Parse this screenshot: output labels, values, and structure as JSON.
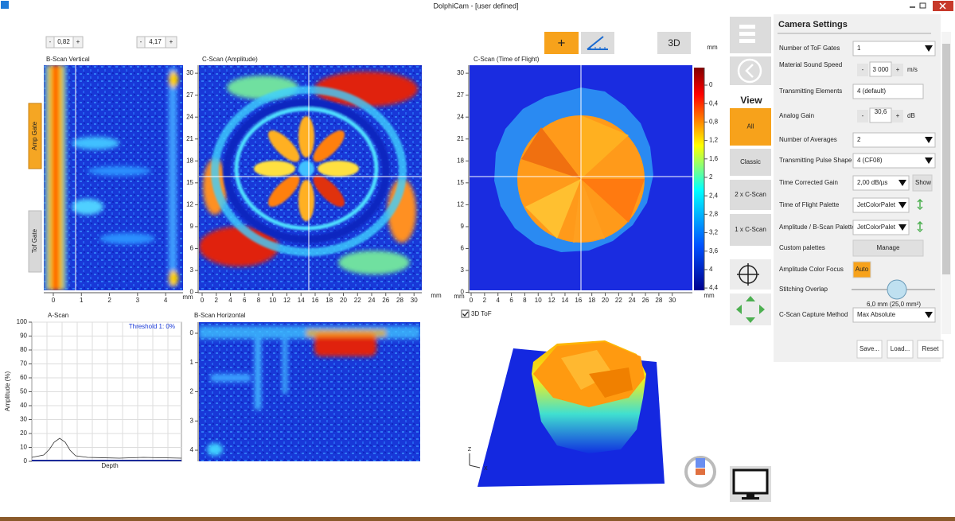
{
  "title": "DolphiCam - [user defined]",
  "gate_inputs": [
    {
      "dec": "-",
      "value": "0,82",
      "inc": "+"
    },
    {
      "dec": "-",
      "value": "4,17",
      "inc": "+"
    }
  ],
  "side_tabs": [
    "Amp Gate",
    "Tof Gate"
  ],
  "toolbar": {
    "add": "+",
    "view_3d": "3D"
  },
  "bscan_vertical": {
    "title": "B-Scan Vertical",
    "xlim": [
      -0.34,
      4.62
    ],
    "xticks": [
      0,
      1,
      2,
      3,
      4
    ],
    "x_unit": "mm"
  },
  "cscan_amplitude": {
    "title": "C-Scan (Amplitude)",
    "xlim": [
      -0.45,
      31.1
    ],
    "xticks": [
      0,
      2,
      4,
      6,
      8,
      10,
      12,
      14,
      16,
      18,
      20,
      22,
      24,
      26,
      28,
      30
    ],
    "ylim": [
      0,
      31.1
    ],
    "yticks": [
      0,
      3,
      6,
      9,
      12,
      15,
      18,
      21,
      24,
      27,
      30
    ],
    "x_unit": "mm"
  },
  "cscan_tof": {
    "title": "C-Scan (Time of Flight)",
    "xlim": [
      -0.24,
      33
    ],
    "xticks": [
      0,
      2,
      4,
      6,
      8,
      10,
      12,
      14,
      16,
      18,
      20,
      22,
      24,
      26,
      28,
      30
    ],
    "ylim": [
      0,
      31.1
    ],
    "yticks": [
      0,
      3,
      6,
      9,
      12,
      15,
      18,
      21,
      24,
      27,
      30
    ],
    "y_unit": "mm"
  },
  "colorbar": {
    "ylim": [
      -0.38,
      4.45
    ],
    "yticks": [
      0,
      {
        "value": 0.4,
        "label": "0,4"
      },
      {
        "value": 0.8,
        "label": "0,8"
      },
      {
        "value": 1.2,
        "label": "1,2"
      },
      {
        "value": 1.6,
        "label": "1,6"
      },
      2,
      {
        "value": 2.4,
        "label": "2,4"
      },
      {
        "value": 2.8,
        "label": "2,8"
      },
      {
        "value": 3.2,
        "label": "3,2"
      },
      {
        "value": 3.6,
        "label": "3,6"
      },
      4,
      {
        "value": 4.4,
        "label": "4,4"
      }
    ],
    "unit_top": "mm",
    "unit_bottom": "mm"
  },
  "ascan": {
    "title": "A-Scan",
    "ylabel": "Amplitude (%)",
    "xlabel": "Depth",
    "threshold": "Threshold 1: 0%",
    "ylim": [
      0,
      100
    ],
    "yticks": [
      0,
      10,
      20,
      30,
      40,
      50,
      60,
      70,
      80,
      90,
      100
    ],
    "grid": true
  },
  "bscan_horizontal": {
    "title": "B-Scan Horizontal",
    "ylim": [
      -0.38,
      4.38
    ],
    "yticks": [
      0,
      1,
      2,
      3,
      4
    ]
  },
  "tof_3d": {
    "checkbox": "3D ToF",
    "axes": [
      "Z",
      "X"
    ]
  },
  "view": {
    "title": "View",
    "modes": [
      "All",
      "Classic",
      "2 x C-Scan",
      "1 x C-Scan"
    ]
  },
  "settings": {
    "title": "Camera Settings",
    "rows": [
      {
        "label": "Number of ToF Gates",
        "value": "1"
      },
      {
        "label": "Material Sound Speed",
        "dec": "-",
        "value": "3 000",
        "inc": "+",
        "unit": "m/s"
      },
      {
        "label": "Transmitting Elements",
        "value": "4 (default)"
      },
      {
        "label": "Analog Gain",
        "dec": "-",
        "value": "30,6",
        "inc": "+",
        "unit": "dB"
      },
      {
        "label": "Number of Averages",
        "value": "2"
      },
      {
        "label": "Transmitting Pulse Shape",
        "value": "4 (CF08)"
      },
      {
        "label": "Time Corrected Gain",
        "value": "2,00 dB/µs",
        "button": "Show"
      },
      {
        "label": "Time of Flight Palette",
        "value": "JetColorPalet"
      },
      {
        "label": "Amplitude / B-Scan Palette",
        "value": "JetColorPalet"
      },
      {
        "label": "Custom palettes",
        "button": "Manage"
      },
      {
        "label": "Amplitude Color Focus",
        "button": "Auto"
      },
      {
        "label": "Stitching Overlap",
        "value": "6,0 mm (25,0 mm²)"
      },
      {
        "label": "C-Scan Capture Method",
        "value": "Max Absolute"
      }
    ],
    "buttons": [
      "Save...",
      "Load...",
      "Reset"
    ]
  }
}
